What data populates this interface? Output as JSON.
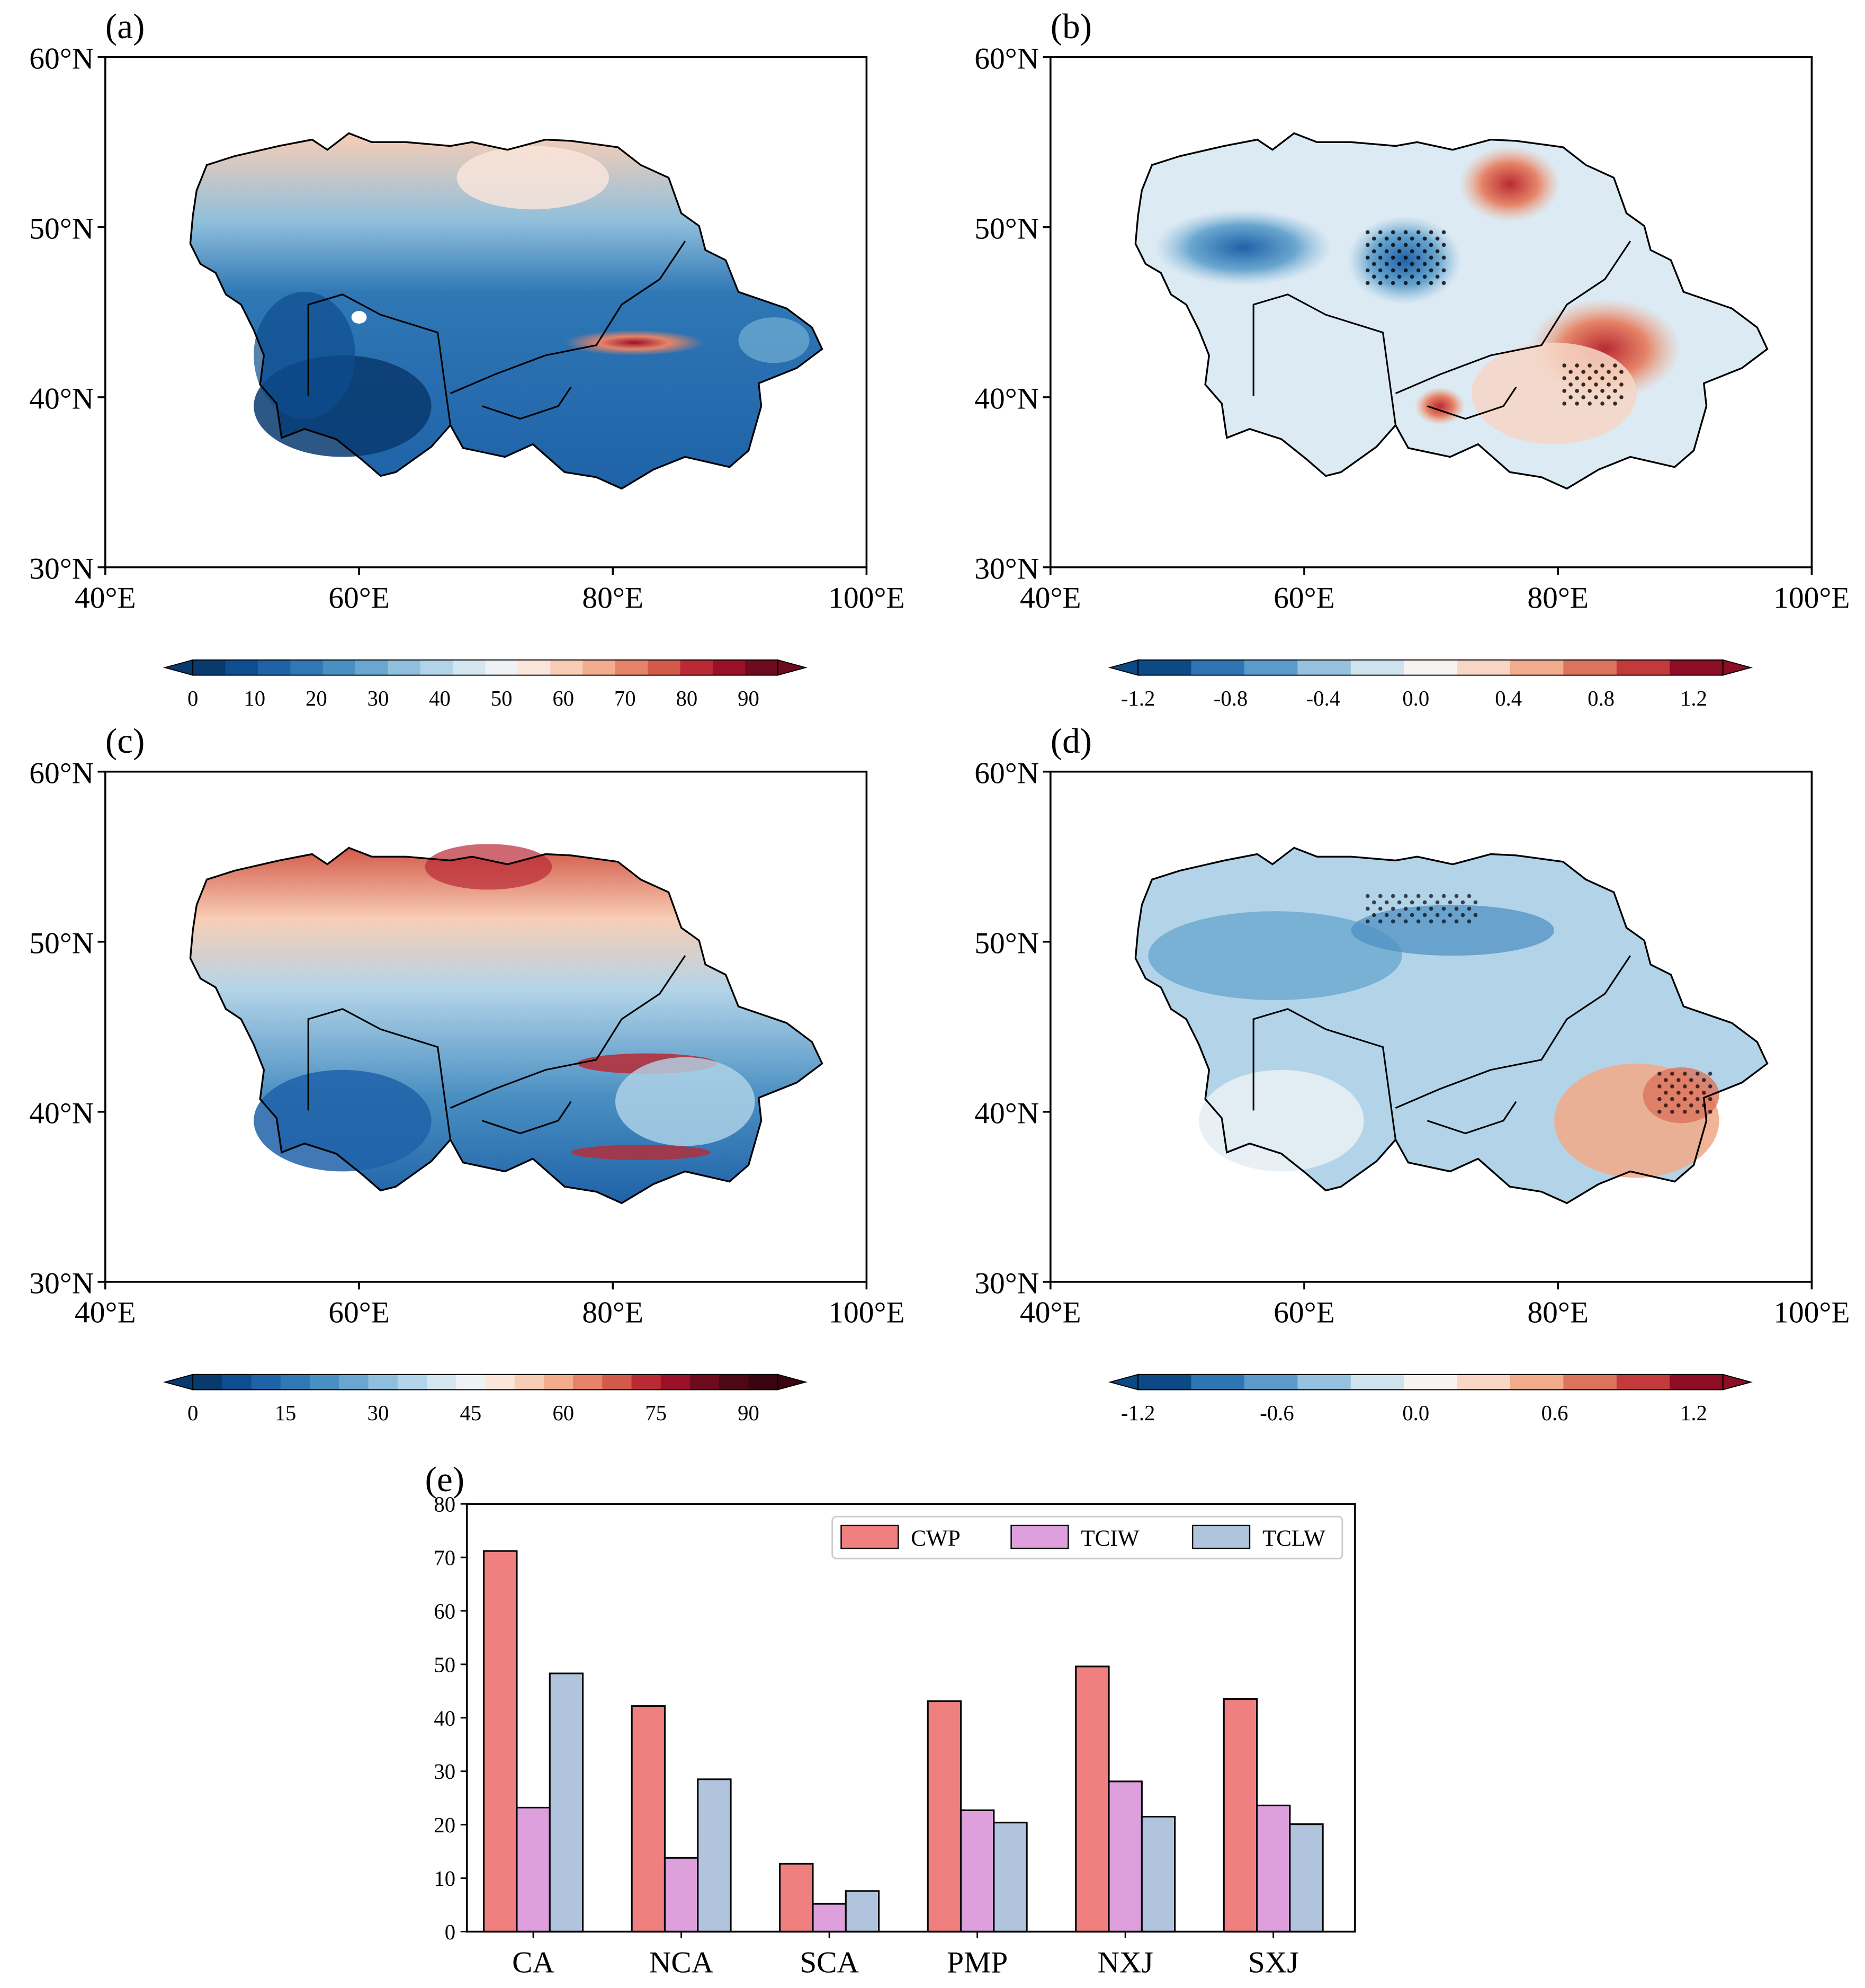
{
  "figure": {
    "panel_labels": [
      "(a)",
      "(b)",
      "(c)",
      "(d)",
      "(e)"
    ]
  },
  "maps": [
    {
      "id": "a",
      "lat_ticks": [
        "60°N",
        "50°N",
        "40°N",
        "30°N"
      ],
      "lon_ticks": [
        "40°E",
        "60°E",
        "80°E",
        "100°E"
      ],
      "colorbar": {
        "ticks": [
          "0",
          "10",
          "20",
          "30",
          "40",
          "50",
          "60",
          "70",
          "80",
          "90"
        ],
        "colors": [
          "#083a6e",
          "#0e4d8f",
          "#1f62a8",
          "#2f77b5",
          "#4a8fc2",
          "#6aa7d0",
          "#8fbfdc",
          "#b3d4e8",
          "#d4e6f0",
          "#eef2f5",
          "#fbe6dc",
          "#f8cdb5",
          "#f2ad8e",
          "#e58468",
          "#d35a4a",
          "#b92a34",
          "#9a1028",
          "#6d0a1e"
        ]
      }
    },
    {
      "id": "b",
      "lat_ticks": [
        "60°N",
        "50°N",
        "40°N",
        "30°N"
      ],
      "lon_ticks": [
        "40°E",
        "60°E",
        "80°E",
        "100°E"
      ],
      "colorbar": {
        "ticks": [
          "-1.2",
          "-0.8",
          "-0.4",
          "0.0",
          "0.4",
          "0.8",
          "1.2"
        ],
        "colors": [
          "#0c4a86",
          "#2f74b3",
          "#5b9bcc",
          "#97c2df",
          "#cfe3ef",
          "#f7f3f1",
          "#f7d6c5",
          "#f0ac8c",
          "#dc735c",
          "#c33a3c",
          "#8d0d25"
        ]
      }
    },
    {
      "id": "c",
      "lat_ticks": [
        "60°N",
        "50°N",
        "40°N",
        "30°N"
      ],
      "lon_ticks": [
        "40°E",
        "60°E",
        "80°E",
        "100°E"
      ],
      "colorbar": {
        "ticks": [
          "0",
          "15",
          "30",
          "45",
          "60",
          "75",
          "90"
        ],
        "colors": [
          "#083a6e",
          "#0e4d8f",
          "#1f62a8",
          "#2f77b5",
          "#4a8fc2",
          "#6aa7d0",
          "#8fbfdc",
          "#b3d4e8",
          "#d4e6f0",
          "#eef2f5",
          "#fbe6dc",
          "#f8cdb5",
          "#f2ad8e",
          "#e58468",
          "#d35a4a",
          "#b92a34",
          "#9a1028",
          "#6d0a1e",
          "#4d0715",
          "#3a0510"
        ]
      }
    },
    {
      "id": "d",
      "lat_ticks": [
        "60°N",
        "50°N",
        "40°N",
        "30°N"
      ],
      "lon_ticks": [
        "40°E",
        "60°E",
        "80°E",
        "100°E"
      ],
      "colorbar": {
        "ticks": [
          "-1.2",
          "-0.6",
          "0.0",
          "0.6",
          "1.2"
        ],
        "colors": [
          "#0c4a86",
          "#2f74b3",
          "#5b9bcc",
          "#97c2df",
          "#cfe3ef",
          "#f7f3f1",
          "#f7d6c5",
          "#f0ac8c",
          "#dc735c",
          "#c33a3c",
          "#8d0d25"
        ]
      }
    }
  ],
  "chart_data": {
    "type": "bar",
    "categories": [
      "CA",
      "NCA",
      "SCA",
      "PMP",
      "NXJ",
      "SXJ"
    ],
    "series": [
      {
        "name": "CWP",
        "color": "#f08080",
        "values": [
          71.2,
          42.2,
          12.7,
          43.1,
          49.6,
          43.5
        ]
      },
      {
        "name": "TCIW",
        "color": "#dda0dd",
        "values": [
          23.2,
          13.8,
          5.2,
          22.7,
          28.1,
          23.6
        ]
      },
      {
        "name": "TCLW",
        "color": "#b0c4de",
        "values": [
          48.3,
          28.5,
          7.6,
          20.4,
          21.5,
          20.1
        ]
      }
    ],
    "yticks": [
      "0",
      "10",
      "20",
      "30",
      "40",
      "50",
      "60",
      "70",
      "80"
    ],
    "ylim": [
      0,
      80
    ],
    "legend": "top-right",
    "title": "",
    "xlabel": "",
    "ylabel": ""
  }
}
